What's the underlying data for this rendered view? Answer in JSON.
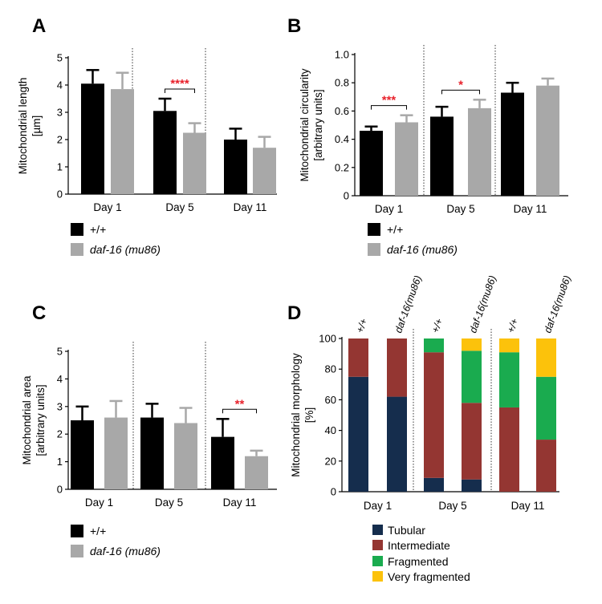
{
  "colors": {
    "wt": "#000000",
    "mut": "#a8a8a8",
    "significance": "#e8212b",
    "tubular": "#152d4d",
    "intermediate": "#943632",
    "fragmented": "#1aab4f",
    "very_fragmented": "#fcc20b"
  },
  "legend": {
    "wt": "+/+",
    "mut": "daf-16 (mu86)"
  },
  "legend_d": {
    "tubular": "Tubular",
    "intermediate": "Intermediate",
    "fragmented": "Fragmented",
    "very_fragmented": "Very fragmented"
  },
  "chart_data": [
    {
      "panel": "A",
      "type": "bar",
      "ylabel_line1": "Mitochondrial length",
      "ylabel_line2": "[µm]",
      "ylim": [
        0,
        5
      ],
      "yticks": [
        "0",
        "1",
        "2",
        "3",
        "4",
        "5"
      ],
      "categories": [
        "Day 1",
        "Day 5",
        "Day 11"
      ],
      "series": [
        {
          "name": "+/+",
          "values": [
            4.05,
            3.05,
            2.0
          ],
          "errors": [
            0.5,
            0.45,
            0.4
          ]
        },
        {
          "name": "daf-16 (mu86)",
          "values": [
            3.85,
            2.25,
            1.7
          ],
          "errors": [
            0.6,
            0.35,
            0.4
          ]
        }
      ],
      "significance": [
        {
          "group": 1,
          "label": "****"
        }
      ]
    },
    {
      "panel": "B",
      "type": "bar",
      "ylabel_line1": "Mitochondrial circularity",
      "ylabel_line2": "[arbitrary units]",
      "ylim": [
        0,
        1.0
      ],
      "yticks": [
        "0",
        "0.2",
        "0.4",
        "0.6",
        "0.8",
        "1.0"
      ],
      "categories": [
        "Day 1",
        "Day 5",
        "Day 11"
      ],
      "series": [
        {
          "name": "+/+",
          "values": [
            0.46,
            0.56,
            0.73
          ],
          "errors": [
            0.03,
            0.07,
            0.07
          ]
        },
        {
          "name": "daf-16 (mu86)",
          "values": [
            0.52,
            0.62,
            0.78
          ],
          "errors": [
            0.05,
            0.06,
            0.05
          ]
        }
      ],
      "significance": [
        {
          "group": 0,
          "label": "***"
        },
        {
          "group": 1,
          "label": "*"
        }
      ]
    },
    {
      "panel": "C",
      "type": "bar",
      "ylabel_line1": "Mitochondrial area",
      "ylabel_line2": "[arbitrary units]",
      "ylim": [
        0,
        5
      ],
      "yticks": [
        "0",
        "1",
        "2",
        "3",
        "4",
        "5"
      ],
      "categories": [
        "Day 1",
        "Day 5",
        "Day 11"
      ],
      "series": [
        {
          "name": "+/+",
          "values": [
            2.5,
            2.6,
            1.9
          ],
          "errors": [
            0.5,
            0.5,
            0.65
          ]
        },
        {
          "name": "daf-16 (mu86)",
          "values": [
            2.6,
            2.4,
            1.2
          ],
          "errors": [
            0.6,
            0.55,
            0.2
          ]
        }
      ],
      "significance": [
        {
          "group": 2,
          "label": "**"
        }
      ]
    },
    {
      "panel": "D",
      "type": "stacked_bar",
      "ylabel_line1": "Mitochondrial  morphology",
      "ylabel_line2": "[%]",
      "ylim": [
        0,
        100
      ],
      "yticks": [
        "0",
        "20",
        "40",
        "60",
        "80",
        "100"
      ],
      "categories": [
        "Day 1",
        "Day 5",
        "Day 11"
      ],
      "column_labels": [
        "+/+",
        "daf-16(mu86)",
        "+/+",
        "daf-16(mu86)",
        "+/+",
        "daf-16(mu86)"
      ],
      "stack_names": [
        "Tubular",
        "Intermediate",
        "Fragmented",
        "Very fragmented"
      ],
      "columns": [
        {
          "group": 0,
          "values": [
            75,
            25,
            0,
            0
          ]
        },
        {
          "group": 0,
          "values": [
            62,
            38,
            0,
            0
          ]
        },
        {
          "group": 1,
          "values": [
            9,
            82,
            9,
            0
          ]
        },
        {
          "group": 1,
          "values": [
            8,
            50,
            34,
            8
          ]
        },
        {
          "group": 2,
          "values": [
            0,
            55,
            36,
            9
          ]
        },
        {
          "group": 2,
          "values": [
            0,
            34,
            41,
            25
          ]
        }
      ]
    }
  ]
}
